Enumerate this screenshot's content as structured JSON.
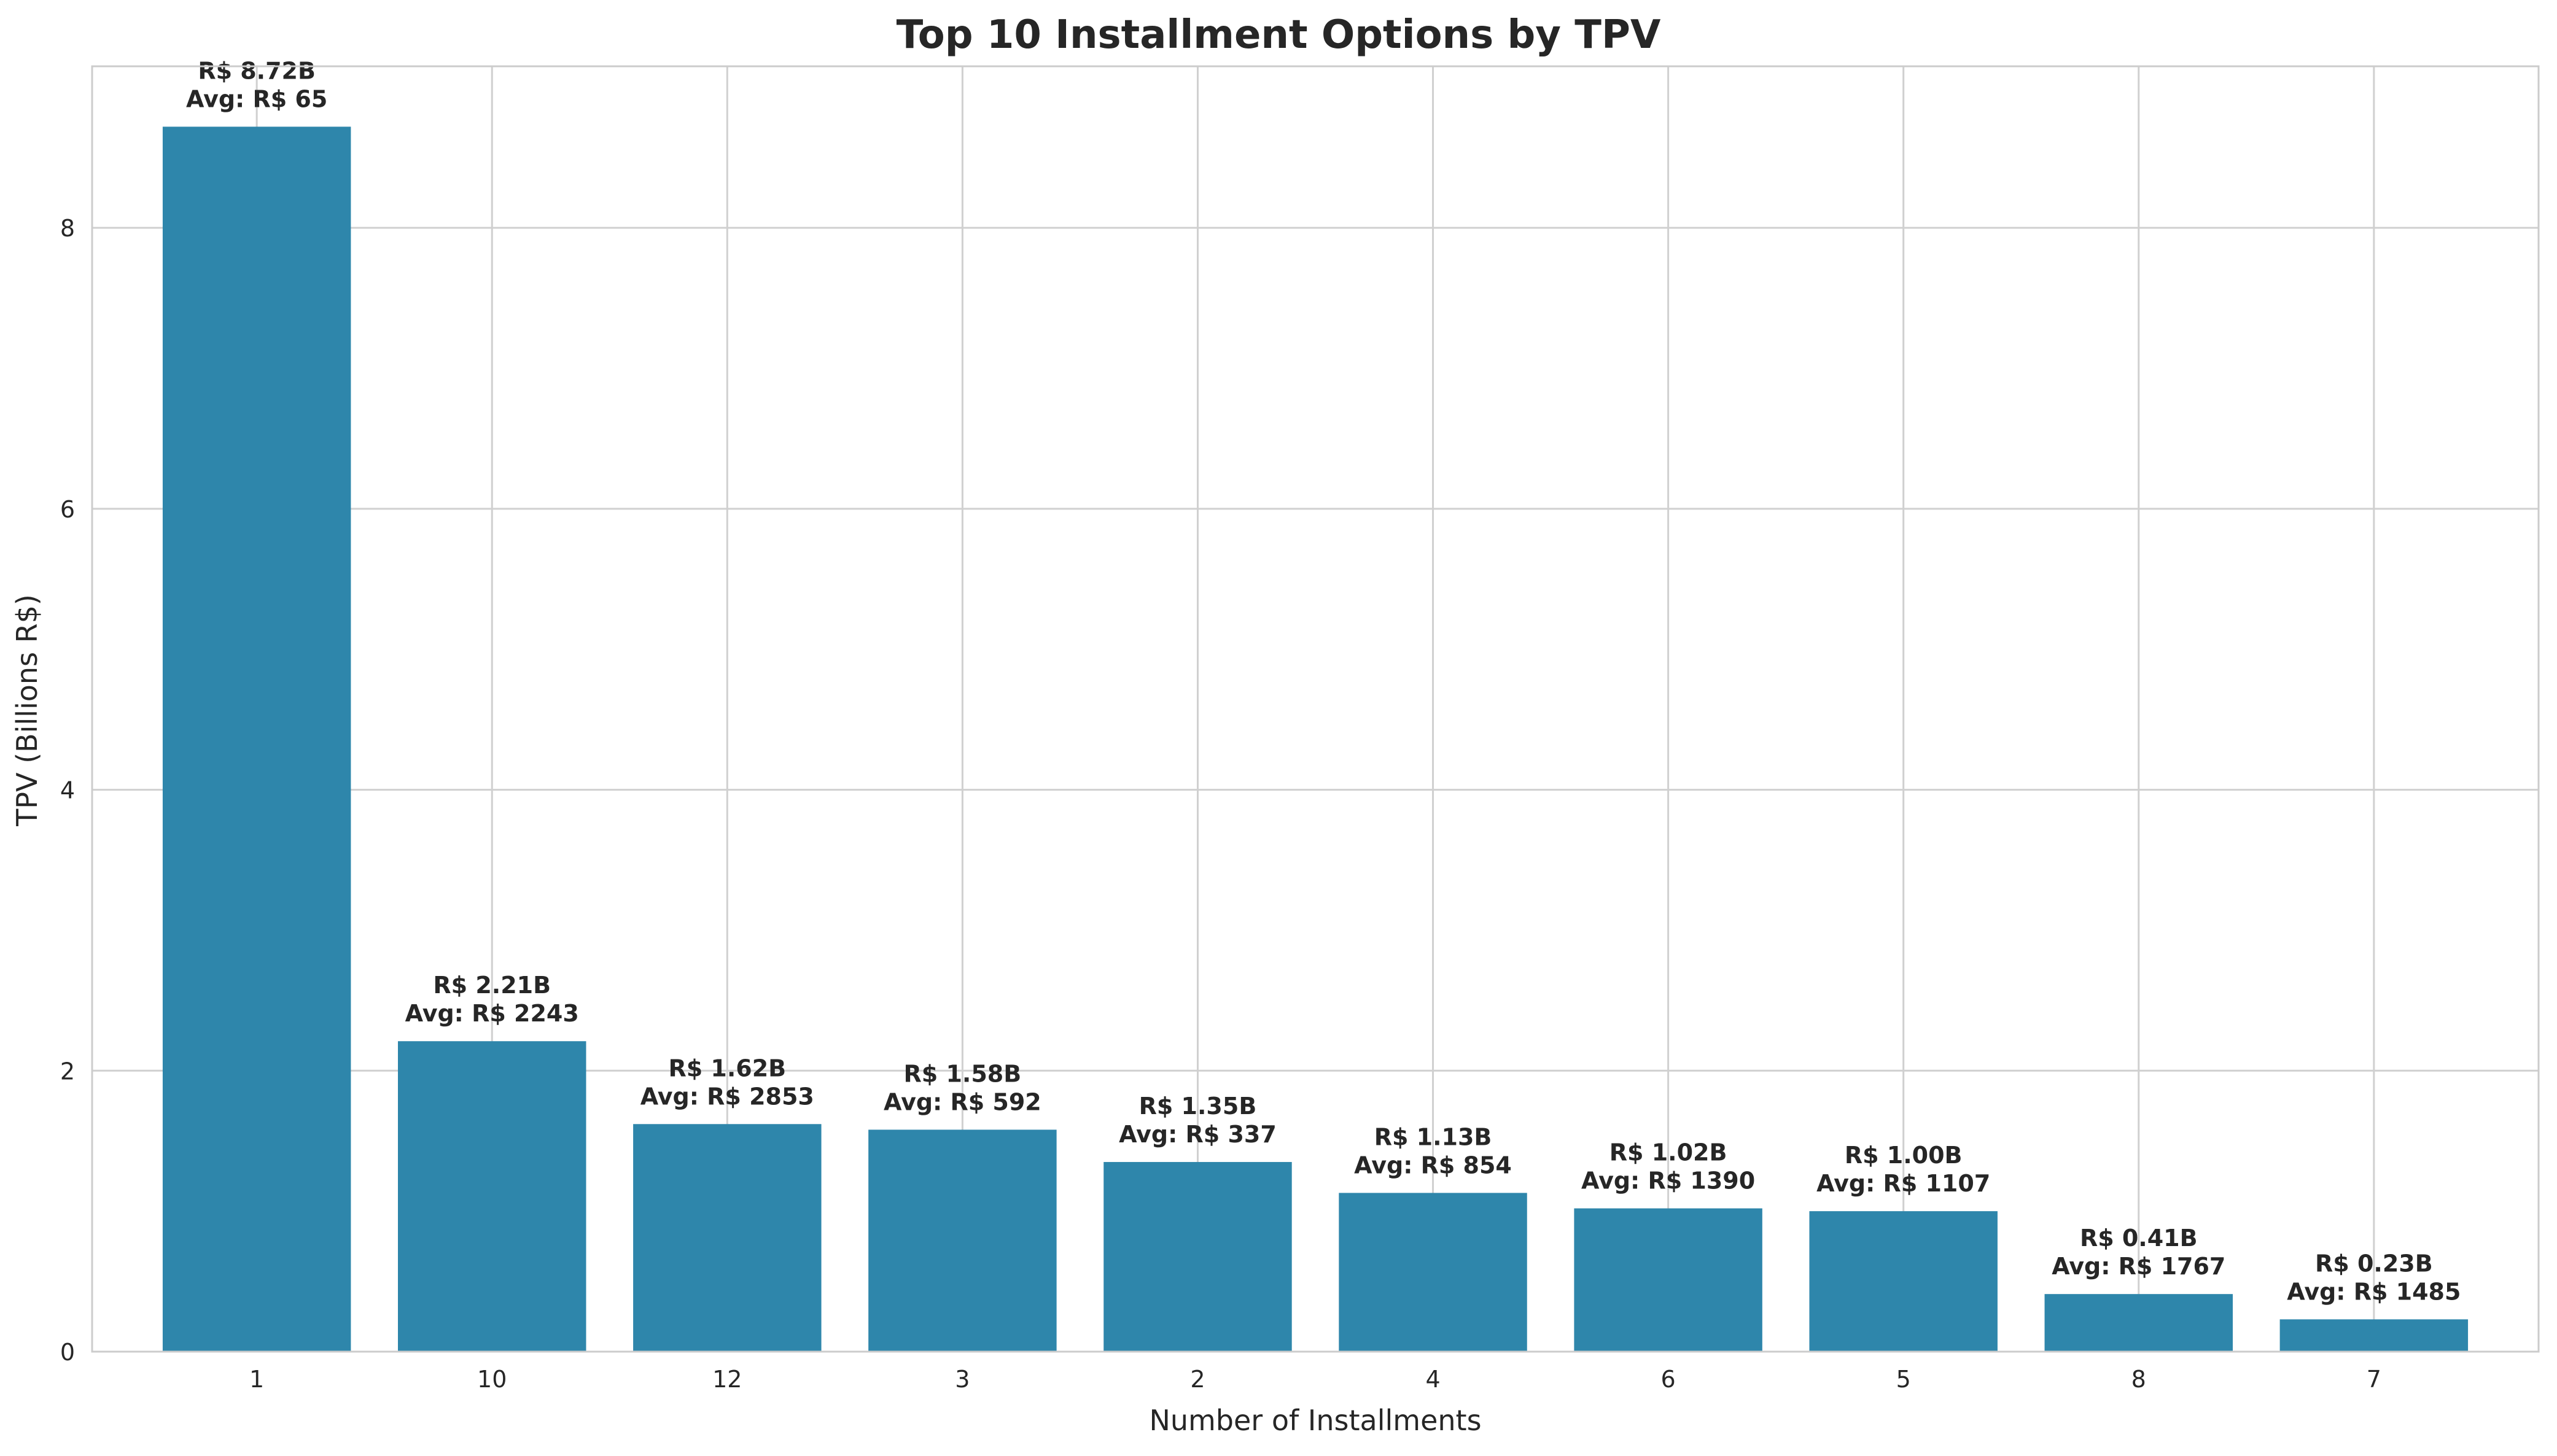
{
  "chart_data": {
    "type": "bar",
    "title": "Top 10 Installment Options by TPV",
    "xlabel": "Number of Installments",
    "ylabel": "TPV (Billions R$)",
    "categories": [
      "1",
      "10",
      "12",
      "3",
      "2",
      "4",
      "6",
      "5",
      "8",
      "7"
    ],
    "values": [
      8.72,
      2.21,
      1.62,
      1.58,
      1.35,
      1.13,
      1.02,
      1.0,
      0.41,
      0.23
    ],
    "value_labels": [
      "R$ 8.72B",
      "R$ 2.21B",
      "R$ 1.62B",
      "R$ 1.58B",
      "R$ 1.35B",
      "R$ 1.13B",
      "R$ 1.02B",
      "R$ 1.00B",
      "R$ 0.41B",
      "R$ 0.23B"
    ],
    "avg_labels": [
      "Avg: R$ 65",
      "Avg: R$ 2243",
      "Avg: R$ 2853",
      "Avg: R$ 592",
      "Avg: R$ 337",
      "Avg: R$ 854",
      "Avg: R$ 1390",
      "Avg: R$ 1107",
      "Avg: R$ 1767",
      "Avg: R$ 1485"
    ],
    "ylim": [
      0,
      9.15
    ],
    "yticks": [
      0,
      2,
      4,
      6,
      8
    ],
    "grid": true,
    "colors": {
      "bar": "#2e86ab",
      "grid": "#d0d0d0",
      "axis": "#cccccc",
      "text": "#262626"
    }
  }
}
